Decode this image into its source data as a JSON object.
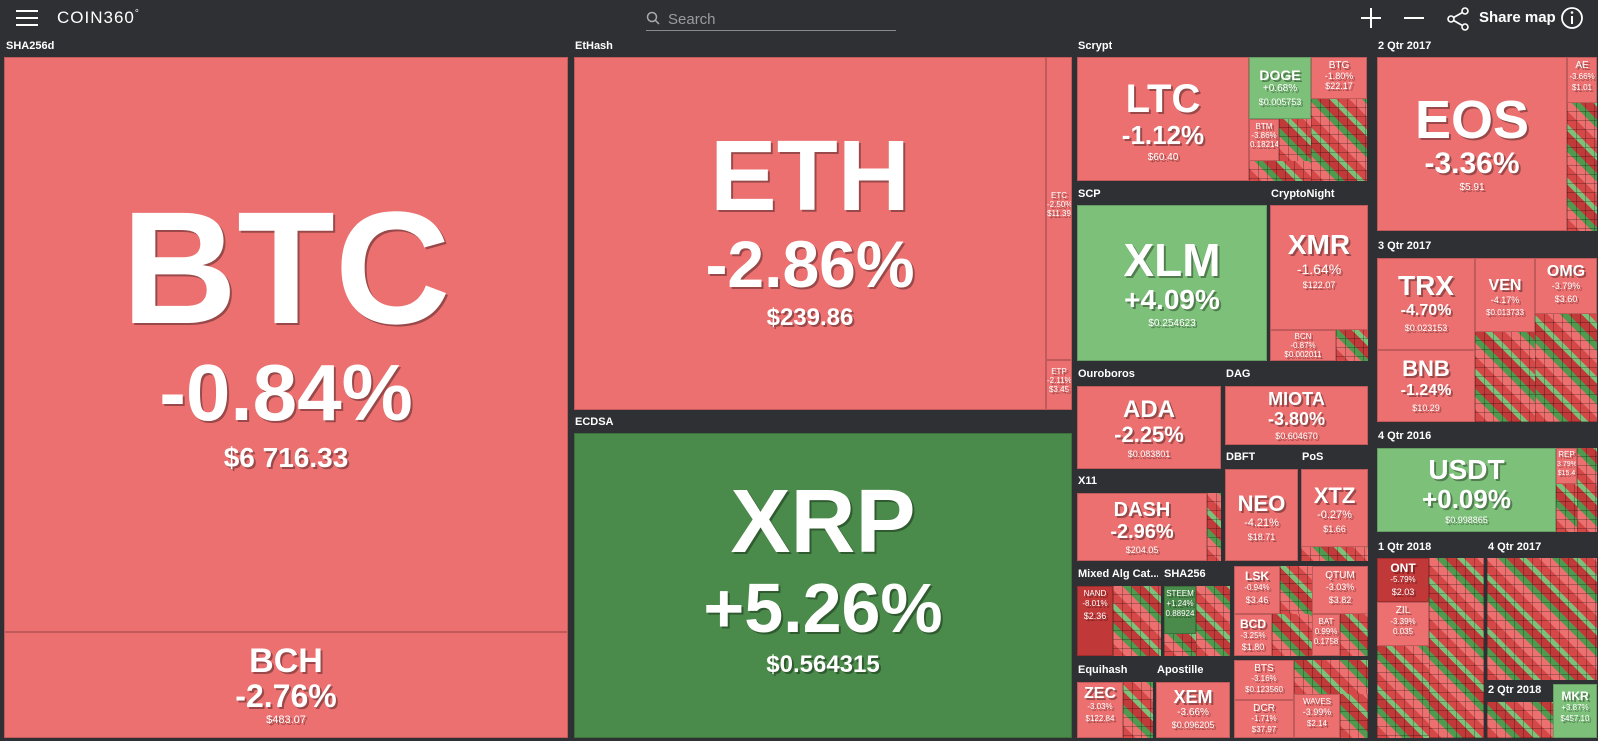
{
  "topbar": {
    "logo": "COIN360",
    "logo_sup": "°",
    "search_placeholder": "Search",
    "zoom_in_icon": "plus-icon",
    "zoom_out_icon": "minus-icon",
    "share_label": "Share map",
    "info_icon": "info-icon"
  },
  "groups": {
    "sha256d": "SHA256d",
    "ethash": "EtHash",
    "ecdsa": "ECDSA",
    "scrypt": "Scrypt",
    "scp": "SCP",
    "cryptonight": "CryptoNight",
    "ouroboros": "Ouroboros",
    "dag": "DAG",
    "x11": "X11",
    "dbft": "DBFT",
    "pos": "PoS",
    "mixed": "Mixed Alg Cat...",
    "sha256": "SHA256",
    "equihash": "Equihash",
    "apostille": "Apostille",
    "q2_2017": "2 Qtr 2017",
    "q3_2017": "3 Qtr 2017",
    "q4_2016": "4 Qtr 2016",
    "q1_2018": "1 Qtr 2018",
    "q4_2017": "4 Qtr 2017",
    "q2_2018": "2 Qtr 2018"
  },
  "coins": {
    "btc": {
      "symbol": "BTC",
      "change": "-0.84%",
      "price": "$6 716.33"
    },
    "bch": {
      "symbol": "BCH",
      "change": "-2.76%",
      "price": "$483.07"
    },
    "eth": {
      "symbol": "ETH",
      "change": "-2.86%",
      "price": "$239.86"
    },
    "etc": {
      "symbol": "ETC",
      "change": "-2.50%",
      "price": "$11.39"
    },
    "etp": {
      "symbol": "ETP",
      "change": "-2.11%",
      "price": "$3.45"
    },
    "xrp": {
      "symbol": "XRP",
      "change": "+5.26%",
      "price": "$0.564315"
    },
    "ltc": {
      "symbol": "LTC",
      "change": "-1.12%",
      "price": "$60.40"
    },
    "doge": {
      "symbol": "DOGE",
      "change": "+0.68%",
      "price": "$0.005753"
    },
    "btg": {
      "symbol": "BTG",
      "change": "-1.80%",
      "price": "$22.17"
    },
    "btm": {
      "symbol": "BTM",
      "change": "-3.86%",
      "price": "0.18214"
    },
    "xlm": {
      "symbol": "XLM",
      "change": "+4.09%",
      "price": "$0.254623"
    },
    "xmr": {
      "symbol": "XMR",
      "change": "-1.64%",
      "price": "$122.07"
    },
    "bcn": {
      "symbol": "BCN",
      "change": "-0.87%",
      "price": "$0.002011"
    },
    "ada": {
      "symbol": "ADA",
      "change": "-2.25%",
      "price": "$0.083801"
    },
    "miota": {
      "symbol": "MIOTA",
      "change": "-3.80%",
      "price": "$0.604670"
    },
    "dash": {
      "symbol": "DASH",
      "change": "-2.96%",
      "price": "$204.05"
    },
    "neo": {
      "symbol": "NEO",
      "change": "-4.21%",
      "price": "$18.71"
    },
    "xtz": {
      "symbol": "XTZ",
      "change": "-0.27%",
      "price": "$1.66"
    },
    "nand": {
      "symbol": "NAND",
      "change": "-8.01%",
      "price": "$2.36"
    },
    "steem": {
      "symbol": "STEEM",
      "change": "+1.24%",
      "price": "0.88924"
    },
    "lsk": {
      "symbol": "LSK",
      "change": "-0.94%",
      "price": "$3.46"
    },
    "qtum": {
      "symbol": "QTUM",
      "change": "-3.03%",
      "price": "$3.82"
    },
    "bcd": {
      "symbol": "BCD",
      "change": "-3.25%",
      "price": "$1.80"
    },
    "bat": {
      "symbol": "BAT",
      "change": "0.99%",
      "price": "0.1758"
    },
    "zec": {
      "symbol": "ZEC",
      "change": "-3.03%",
      "price": "$122.84"
    },
    "xem": {
      "symbol": "XEM",
      "change": "-3.66%",
      "price": "$0.096205"
    },
    "bts": {
      "symbol": "BTS",
      "change": "-3.16%",
      "price": "$0.123560"
    },
    "dcr": {
      "symbol": "DCR",
      "change": "-1.71%",
      "price": "$37.97"
    },
    "waves": {
      "symbol": "WAVES",
      "change": "-3.99%",
      "price": "$2.14"
    },
    "eos": {
      "symbol": "EOS",
      "change": "-3.36%",
      "price": "$5.91"
    },
    "ae": {
      "symbol": "AE",
      "change": "-3.66%",
      "price": "$1.01"
    },
    "trx": {
      "symbol": "TRX",
      "change": "-4.70%",
      "price": "$0.023153"
    },
    "ven": {
      "symbol": "VEN",
      "change": "-4.17%",
      "price": "$0.013733"
    },
    "omg": {
      "symbol": "OMG",
      "change": "-3.79%",
      "price": "$3.60"
    },
    "bnb": {
      "symbol": "BNB",
      "change": "-1.24%",
      "price": "$10.29"
    },
    "usdt": {
      "symbol": "USDT",
      "change": "+0.09%",
      "price": "$0.998865"
    },
    "rep": {
      "symbol": "REP",
      "change": "3.79%",
      "price": "$15.4"
    },
    "ont": {
      "symbol": "ONT",
      "change": "-5.79%",
      "price": "$2.03"
    },
    "zil": {
      "symbol": "ZIL",
      "change": "-3.39%",
      "price": "0.035"
    },
    "mkr": {
      "symbol": "MKR",
      "change": "+3.87%",
      "price": "$457.10"
    }
  }
}
